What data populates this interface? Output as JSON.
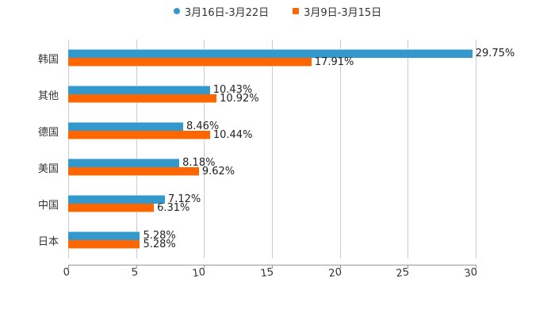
{
  "legend": {
    "items": [
      {
        "label": "3月16日-3月22日",
        "color": "#3399cc",
        "marker": "circle"
      },
      {
        "label": "3月9日-3月15日",
        "color": "#ff6600",
        "marker": "square"
      }
    ]
  },
  "chart_data": {
    "type": "bar",
    "orientation": "horizontal",
    "title": "",
    "xlabel": "",
    "ylabel": "",
    "xlim": [
      0,
      30
    ],
    "x_ticks": [
      "0",
      "5",
      "10",
      "15",
      "20",
      "25",
      "30"
    ],
    "grid": true,
    "legend_position": "top",
    "categories": [
      "韩国",
      "其他",
      "德国",
      "美国",
      "中国",
      "日本"
    ],
    "series": [
      {
        "name": "3月16日-3月22日",
        "color": "#3399cc",
        "values": [
          29.75,
          10.43,
          8.46,
          8.18,
          7.12,
          5.28
        ],
        "labels": [
          "29.75%",
          "10.43%",
          "8.46%",
          "8.18%",
          "7.12%",
          "5.28%"
        ]
      },
      {
        "name": "3月9日-3月15日",
        "color": "#ff6600",
        "values": [
          17.91,
          10.92,
          10.44,
          9.62,
          6.31,
          5.28
        ],
        "labels": [
          "17.91%",
          "10.92%",
          "10.44%",
          "9.62%",
          "6.31%",
          "5.28%"
        ]
      }
    ]
  }
}
